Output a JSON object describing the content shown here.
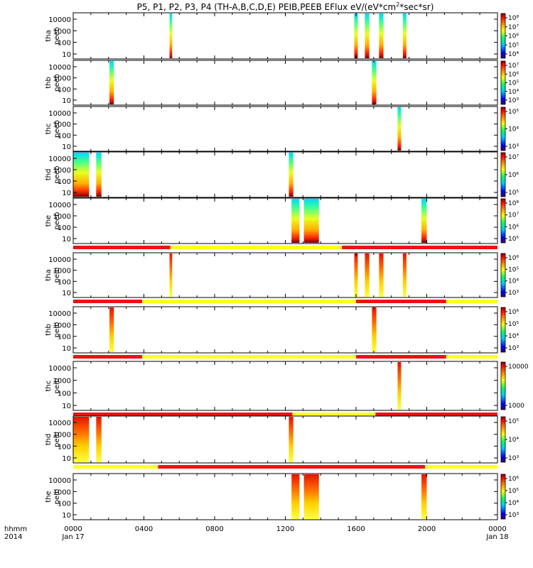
{
  "title_parts": {
    "before": "P5, P1, P2, P3, P4 (TH-A,B,C,D,E) PEIB,PEEB EFlux eV/(eV*cm",
    "sup": "2",
    "after": "*sec*sr)"
  },
  "colors": {
    "flag_red": "#ee1111",
    "flag_yellow": "#ffff22"
  },
  "chart_data": {
    "type": "heatmap",
    "x_axis": {
      "label_top": "hhmm",
      "label_bottom": "2014",
      "ticks": [
        {
          "t": 0,
          "label": "0000",
          "sub": "Jan 17"
        },
        {
          "t": 4,
          "label": "0400",
          "sub": ""
        },
        {
          "t": 8,
          "label": "0800",
          "sub": ""
        },
        {
          "t": 12,
          "label": "1200",
          "sub": ""
        },
        {
          "t": 16,
          "label": "1600",
          "sub": ""
        },
        {
          "t": 20,
          "label": "2000",
          "sub": ""
        },
        {
          "t": 24,
          "label": "0000",
          "sub": "Jan 18"
        }
      ],
      "range": [
        0,
        24
      ]
    },
    "panels": [
      {
        "label1": "tha",
        "label2": "peeb",
        "y_ticks": [
          "10000",
          "1000",
          "100",
          "10"
        ],
        "colorbar_labels": [
          "10⁸",
          "10⁷",
          "10⁶",
          "10⁵",
          "10⁴"
        ],
        "bursts": [
          [
            5.45,
            5.6
          ],
          [
            15.9,
            16.1
          ],
          [
            16.5,
            16.75
          ],
          [
            17.3,
            17.55
          ],
          [
            18.65,
            18.85
          ]
        ],
        "flag_segments": []
      },
      {
        "label1": "thb",
        "label2": "peeb",
        "y_ticks": [
          "10000",
          "1000",
          "100",
          "10"
        ],
        "colorbar_labels": [
          "10⁷",
          "10⁶",
          "10⁵",
          "10⁴",
          "10³"
        ],
        "bursts": [
          [
            2.05,
            2.3
          ],
          [
            16.9,
            17.15
          ]
        ],
        "flag_segments": []
      },
      {
        "label1": "thc",
        "label2": "peeb",
        "y_ticks": [
          "10000",
          "1000",
          "100",
          "10"
        ],
        "colorbar_labels": [
          "10⁵",
          "10⁴",
          "10³"
        ],
        "bursts": [
          [
            18.35,
            18.55
          ]
        ],
        "flag_segments": []
      },
      {
        "label1": "thd",
        "label2": "peeb",
        "y_ticks": [
          "10000",
          "1000",
          "100",
          "10"
        ],
        "colorbar_labels": [
          "10⁷",
          "10⁶",
          "10⁵"
        ],
        "bursts": [
          [
            0.0,
            0.9
          ],
          [
            1.3,
            1.6
          ],
          [
            12.2,
            12.45
          ]
        ],
        "flag_segments": []
      },
      {
        "label1": "the",
        "label2": "peeb",
        "y_ticks": [
          "10000",
          "1000",
          "100",
          "10"
        ],
        "colorbar_labels": [
          "10⁸",
          "10⁷",
          "10⁶",
          "10⁵"
        ],
        "bursts": [
          [
            12.35,
            12.8
          ],
          [
            13.05,
            13.9
          ],
          [
            19.7,
            20.0
          ]
        ],
        "flag_segments": [
          {
            "from": 0,
            "to": 5.5,
            "c": "red"
          },
          {
            "from": 5.5,
            "to": 15.2,
            "c": "yellow"
          },
          {
            "from": 15.2,
            "to": 24,
            "c": "red"
          }
        ]
      },
      {
        "label1": "tha",
        "label2": "peib",
        "y_ticks": [
          "10000",
          "1000",
          "100",
          "10"
        ],
        "colorbar_labels": [
          "10⁶",
          "10⁵",
          "10⁴",
          "10³"
        ],
        "bursts": [
          [
            5.45,
            5.6
          ],
          [
            15.9,
            16.1
          ],
          [
            16.5,
            16.75
          ],
          [
            17.3,
            17.55
          ],
          [
            18.65,
            18.85
          ]
        ],
        "flag_segments": [
          {
            "from": 0,
            "to": 3.9,
            "c": "red"
          },
          {
            "from": 3.9,
            "to": 16.0,
            "c": "yellow"
          },
          {
            "from": 16.0,
            "to": 21.1,
            "c": "red"
          },
          {
            "from": 21.1,
            "to": 24,
            "c": "yellow"
          }
        ]
      },
      {
        "label1": "thb",
        "label2": "peib",
        "y_ticks": [
          "10000",
          "1000",
          "100",
          "10"
        ],
        "colorbar_labels": [
          "10⁶",
          "10⁵",
          "10⁴",
          "10³"
        ],
        "bursts": [
          [
            2.05,
            2.3
          ],
          [
            16.9,
            17.15
          ]
        ],
        "flag_segments": [
          {
            "from": 0,
            "to": 3.9,
            "c": "red"
          },
          {
            "from": 3.9,
            "to": 16.0,
            "c": "yellow"
          },
          {
            "from": 16.0,
            "to": 21.1,
            "c": "red"
          },
          {
            "from": 21.1,
            "to": 24,
            "c": "yellow"
          }
        ]
      },
      {
        "label1": "thc",
        "label2": "peib",
        "y_ticks": [
          "10000",
          "1000",
          "100",
          "10"
        ],
        "colorbar_labels": [
          "10000",
          "1000"
        ],
        "bursts": [
          [
            18.35,
            18.55
          ]
        ],
        "flag_segments": [
          {
            "from": 0,
            "to": 12.4,
            "c": "red"
          },
          {
            "from": 12.4,
            "to": 17.1,
            "c": "yellow"
          },
          {
            "from": 17.1,
            "to": 24,
            "c": "red"
          }
        ]
      },
      {
        "label1": "thd",
        "label2": "peib",
        "y_ticks": [
          "10000",
          "1000",
          "100",
          "10"
        ],
        "colorbar_labels": [
          "10⁵",
          "10⁴",
          "10³"
        ],
        "bursts": [
          [
            0.0,
            0.9
          ],
          [
            1.3,
            1.6
          ],
          [
            12.2,
            12.45
          ]
        ],
        "flag_segments": [
          {
            "from": 0,
            "to": 4.8,
            "c": "yellow"
          },
          {
            "from": 4.8,
            "to": 19.9,
            "c": "red"
          },
          {
            "from": 19.9,
            "to": 24,
            "c": "yellow"
          }
        ]
      },
      {
        "label1": "the",
        "label2": "peib",
        "y_ticks": [
          "10000",
          "1000",
          "100",
          "10"
        ],
        "colorbar_labels": [
          "10⁶",
          "10⁵",
          "10⁴",
          "10³"
        ],
        "bursts": [
          [
            12.35,
            12.8
          ],
          [
            13.05,
            13.9
          ],
          [
            19.7,
            20.0
          ]
        ],
        "flag_segments": []
      }
    ]
  }
}
